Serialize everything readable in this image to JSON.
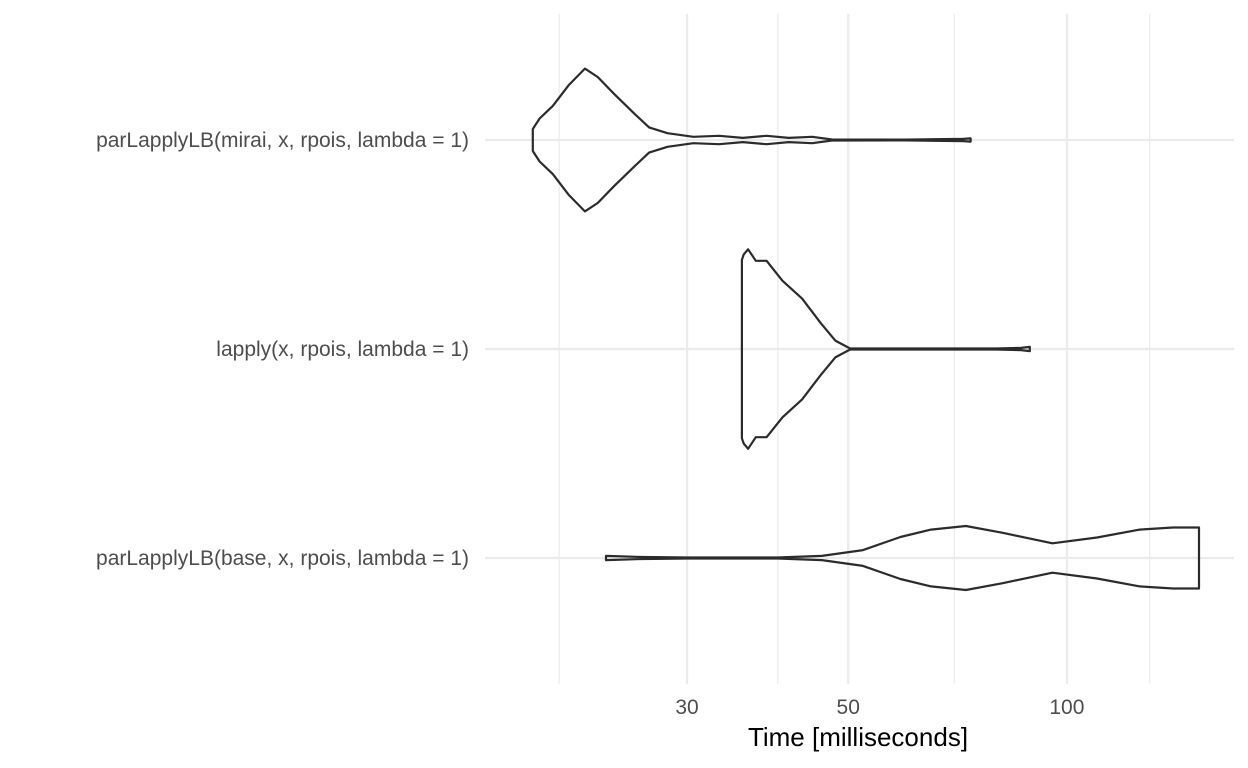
{
  "chart_data": {
    "type": "violin",
    "orientation": "horizontal",
    "title": "",
    "xlabel": "Time [milliseconds]",
    "ylabel": "",
    "x_scale": "log10",
    "xlim": [
      17.5,
      152
    ],
    "x_ticks": [
      30,
      50,
      100
    ],
    "x_tick_labels": [
      "30",
      "50",
      "100"
    ],
    "x_minor_gridlines": [
      20,
      40,
      70,
      130
    ],
    "grid": true,
    "legend": "none",
    "categories": [
      "parLapplyLB(mirai, x, rpois, lambda = 1)",
      "lapply(x, rpois, lambda = 1)",
      "parLapplyLB(base, x, rpois, lambda = 1)"
    ],
    "series": [
      {
        "category": "parLapplyLB(mirai, x, rpois, lambda = 1)",
        "range": [
          18.4,
          73.7
        ],
        "profile": [
          [
            18.4,
            0.105
          ],
          [
            18.8,
            0.205
          ],
          [
            19.6,
            0.325
          ],
          [
            20.6,
            0.52
          ],
          [
            21.7,
            0.68
          ],
          [
            22.6,
            0.6
          ],
          [
            23.8,
            0.44
          ],
          [
            25.4,
            0.25
          ],
          [
            26.6,
            0.12
          ],
          [
            28.2,
            0.065
          ],
          [
            30.6,
            0.03
          ],
          [
            33.2,
            0.04
          ],
          [
            35.8,
            0.02
          ],
          [
            38.6,
            0.04
          ],
          [
            41.4,
            0.02
          ],
          [
            44.6,
            0.03
          ],
          [
            47.5,
            0.005
          ],
          [
            60.0,
            0.004
          ],
          [
            72.0,
            0.01
          ],
          [
            73.7,
            0.015
          ]
        ]
      },
      {
        "category": "lapply(x, rpois, lambda = 1)",
        "range": [
          35.7,
          88.9
        ],
        "profile": [
          [
            35.7,
            0.85
          ],
          [
            35.9,
            0.9
          ],
          [
            36.4,
            0.95
          ],
          [
            37.3,
            0.84
          ],
          [
            38.6,
            0.84
          ],
          [
            40.6,
            0.65
          ],
          [
            43.2,
            0.48
          ],
          [
            45.8,
            0.25
          ],
          [
            48.0,
            0.08
          ],
          [
            50.3,
            0.005
          ],
          [
            80.0,
            0.005
          ],
          [
            86.5,
            0.01
          ],
          [
            88.9,
            0.02
          ]
        ]
      },
      {
        "category": "parLapplyLB(base, x, rpois, lambda = 1)",
        "range": [
          23.2,
          152.0
        ],
        "profile": [
          [
            23.2,
            0.02
          ],
          [
            26.0,
            0.01
          ],
          [
            30.0,
            0.005
          ],
          [
            40.0,
            0.005
          ],
          [
            46.0,
            0.02
          ],
          [
            52.4,
            0.075
          ],
          [
            59.0,
            0.2
          ],
          [
            65.0,
            0.27
          ],
          [
            72.6,
            0.305
          ],
          [
            81.6,
            0.24
          ],
          [
            95.5,
            0.14
          ],
          [
            110.0,
            0.195
          ],
          [
            126.0,
            0.27
          ],
          [
            140.0,
            0.29
          ],
          [
            152.0,
            0.29
          ]
        ]
      }
    ]
  }
}
